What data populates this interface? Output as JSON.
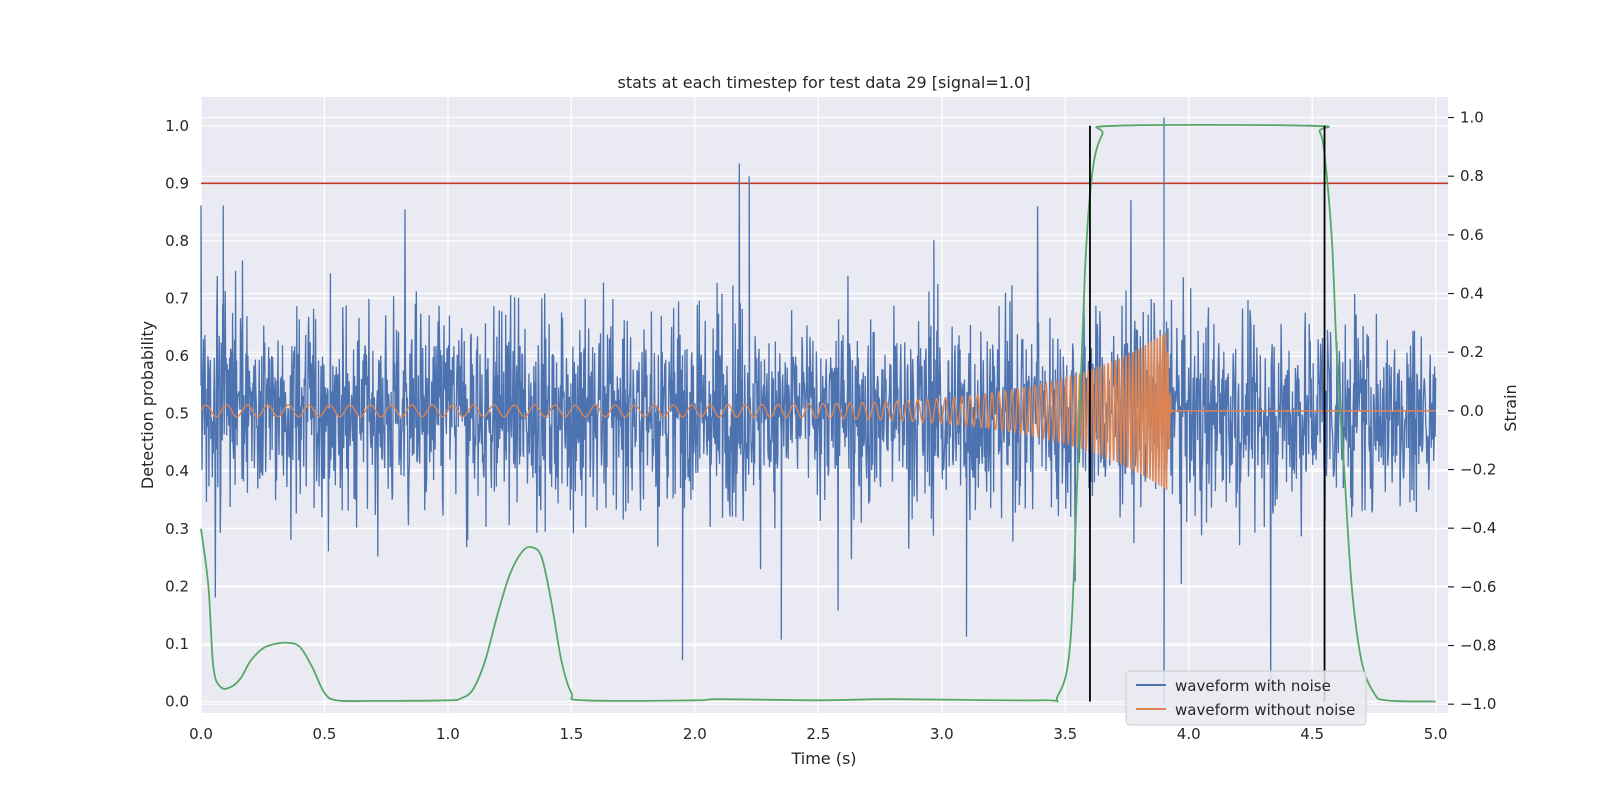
{
  "chart_data": {
    "type": "line",
    "title": "stats at each timestep for test data 29 [signal=1.0]",
    "xlabel": "Time (s)",
    "ylabel": "Detection probability",
    "y2label": "Strain",
    "xlim": [
      0.0,
      5.05
    ],
    "ylim": [
      -0.02,
      1.05
    ],
    "y2lim": [
      -1.03,
      1.07
    ],
    "xticks": [
      0.0,
      0.5,
      1.0,
      1.5,
      2.0,
      2.5,
      3.0,
      3.5,
      4.0,
      4.5,
      5.0
    ],
    "xtick_labels": [
      "0.0",
      "0.5",
      "1.0",
      "1.5",
      "2.0",
      "2.5",
      "3.0",
      "3.5",
      "4.0",
      "4.5",
      "5.0"
    ],
    "yticks": [
      0.0,
      0.1,
      0.2,
      0.3,
      0.4,
      0.5,
      0.6,
      0.7,
      0.8,
      0.9,
      1.0
    ],
    "ytick_labels": [
      "0.0",
      "0.1",
      "0.2",
      "0.3",
      "0.4",
      "0.5",
      "0.6",
      "0.7",
      "0.8",
      "0.9",
      "1.0"
    ],
    "y2ticks": [
      -1.0,
      -0.8,
      -0.6,
      -0.4,
      -0.2,
      0.0,
      0.2,
      0.4,
      0.6,
      0.8,
      1.0
    ],
    "y2tick_labels": [
      "−1.0",
      "−0.8",
      "−0.6",
      "−0.4",
      "−0.2",
      "0.0",
      "0.2",
      "0.4",
      "0.6",
      "0.8",
      "1.0"
    ],
    "grid": true,
    "legend_position": "lower-right",
    "threshold": {
      "y": 0.9,
      "color": "#c0392b"
    },
    "vertical_markers": [
      3.6,
      4.55
    ],
    "series": [
      {
        "name": "waveform with noise",
        "axis": "right",
        "color": "#4c72b0",
        "description_noise_std": 0.17,
        "range_approx": [
          -1.0,
          1.0
        ],
        "spikes": [
          [
            0.0,
            0.7
          ],
          [
            0.09,
            0.7
          ],
          [
            2.22,
            0.8
          ],
          [
            3.9,
            1.0
          ],
          [
            3.9,
            -1.0
          ],
          [
            1.95,
            -0.85
          ],
          [
            2.35,
            -0.78
          ],
          [
            3.1,
            -0.77
          ]
        ]
      },
      {
        "name": "waveform without noise",
        "axis": "right",
        "color": "#dd8452",
        "chirp": {
          "start_time": 0.0,
          "merger_time": 3.91,
          "start_amplitude": 0.02,
          "peak_amplitude": 0.27,
          "start_frequency_hz": 12,
          "end_frequency_hz": 90
        }
      },
      {
        "name": "detection probability",
        "axis": "left",
        "color": "#55a868",
        "points": [
          [
            0.0,
            0.3
          ],
          [
            0.03,
            0.2
          ],
          [
            0.05,
            0.06
          ],
          [
            0.08,
            0.025
          ],
          [
            0.12,
            0.025
          ],
          [
            0.16,
            0.04
          ],
          [
            0.2,
            0.07
          ],
          [
            0.25,
            0.092
          ],
          [
            0.3,
            0.1
          ],
          [
            0.35,
            0.102
          ],
          [
            0.4,
            0.095
          ],
          [
            0.45,
            0.06
          ],
          [
            0.5,
            0.015
          ],
          [
            0.55,
            0.002
          ],
          [
            0.7,
            0.001
          ],
          [
            1.0,
            0.002
          ],
          [
            1.05,
            0.005
          ],
          [
            1.1,
            0.02
          ],
          [
            1.15,
            0.07
          ],
          [
            1.2,
            0.15
          ],
          [
            1.25,
            0.22
          ],
          [
            1.3,
            0.26
          ],
          [
            1.34,
            0.268
          ],
          [
            1.38,
            0.25
          ],
          [
            1.42,
            0.17
          ],
          [
            1.46,
            0.07
          ],
          [
            1.5,
            0.015
          ],
          [
            1.55,
            0.002
          ],
          [
            2.0,
            0.002
          ],
          [
            2.1,
            0.004
          ],
          [
            2.5,
            0.002
          ],
          [
            2.8,
            0.004
          ],
          [
            3.4,
            0.002
          ],
          [
            3.47,
            0.01
          ],
          [
            3.52,
            0.1
          ],
          [
            3.55,
            0.4
          ],
          [
            3.58,
            0.75
          ],
          [
            3.61,
            0.92
          ],
          [
            3.65,
            0.985
          ],
          [
            3.7,
            1.0
          ],
          [
            4.5,
            1.0
          ],
          [
            4.53,
            0.99
          ],
          [
            4.55,
            0.95
          ],
          [
            4.58,
            0.8
          ],
          [
            4.6,
            0.6
          ],
          [
            4.63,
            0.4
          ],
          [
            4.66,
            0.2
          ],
          [
            4.7,
            0.07
          ],
          [
            4.75,
            0.015
          ],
          [
            4.8,
            0.002
          ],
          [
            5.0,
            0.0
          ]
        ]
      }
    ]
  }
}
